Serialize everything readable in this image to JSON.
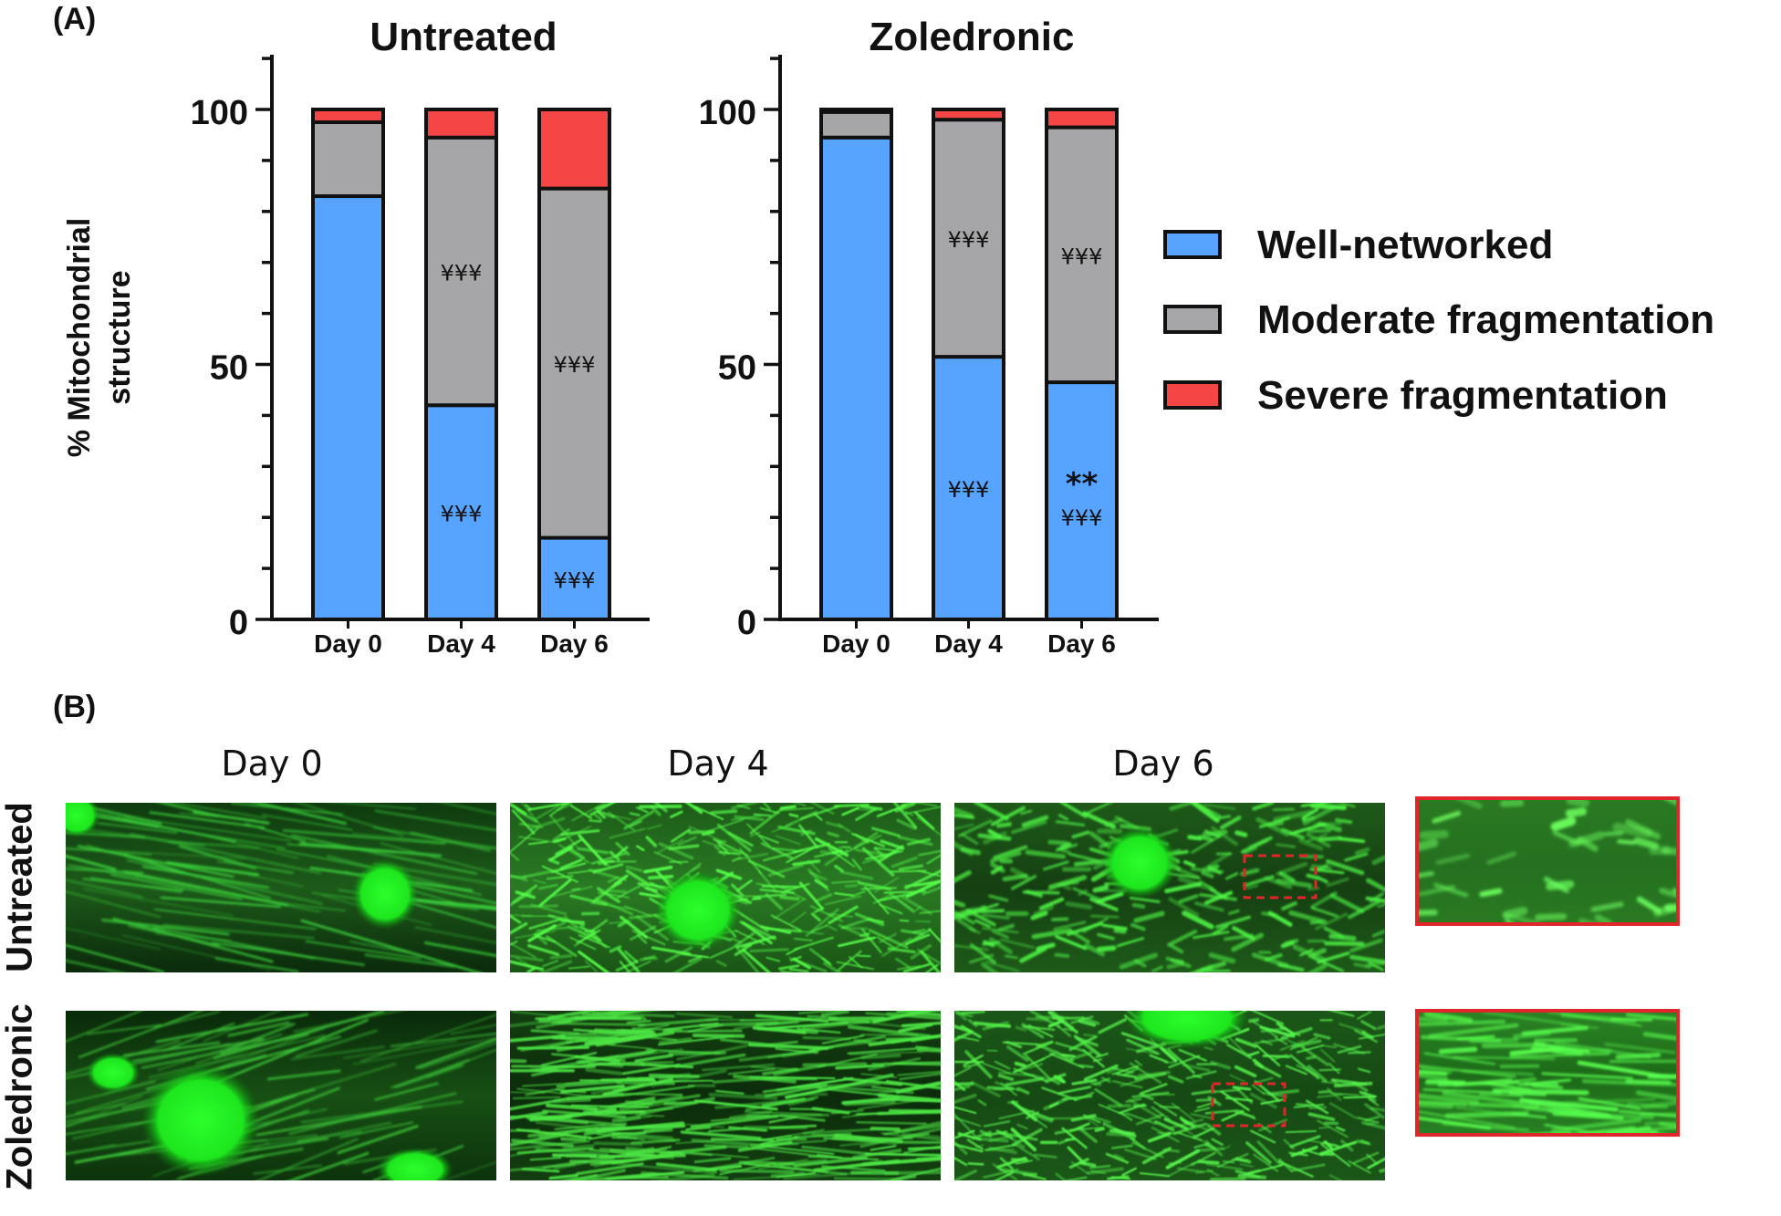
{
  "panels": {
    "a_label": "(A)",
    "b_label": "(B)"
  },
  "chart_data": [
    {
      "type": "bar",
      "stacked": true,
      "title": "Untreated",
      "ylabel": "% Mitochondrial structure",
      "xlabel": "",
      "ylim": [
        0,
        100
      ],
      "yticks": [
        "0",
        "50",
        "100"
      ],
      "categories": [
        "Day 0",
        "Day 4",
        "Day 6"
      ],
      "series": [
        {
          "name": "Well-networked",
          "color": "#56a4ff",
          "values": [
            83,
            42,
            16
          ]
        },
        {
          "name": "Moderate fragmentation",
          "color": "#a6a6a8",
          "values": [
            14.5,
            52.5,
            68.5
          ]
        },
        {
          "name": "Severe fragmentation",
          "color": "#f64545",
          "values": [
            2.5,
            5.5,
            15.5
          ]
        }
      ],
      "annotations": [
        {
          "category": "Day 4",
          "series": "Moderate fragmentation",
          "text": "¥¥¥"
        },
        {
          "category": "Day 4",
          "series": "Well-networked",
          "text": "¥¥¥"
        },
        {
          "category": "Day 6",
          "series": "Moderate fragmentation",
          "text": "¥¥¥"
        },
        {
          "category": "Day 6",
          "series": "Well-networked",
          "text": "¥¥¥"
        }
      ]
    },
    {
      "type": "bar",
      "stacked": true,
      "title": "Zoledronic",
      "ylabel": "",
      "xlabel": "",
      "ylim": [
        0,
        100
      ],
      "yticks": [
        "0",
        "50",
        "100"
      ],
      "categories": [
        "Day 0",
        "Day 4",
        "Day 6"
      ],
      "series": [
        {
          "name": "Well-networked",
          "color": "#56a4ff",
          "values": [
            94.5,
            51.5,
            46.5
          ]
        },
        {
          "name": "Moderate fragmentation",
          "color": "#a6a6a8",
          "values": [
            5,
            46.5,
            50
          ]
        },
        {
          "name": "Severe fragmentation",
          "color": "#f64545",
          "values": [
            0.5,
            2,
            3.5
          ]
        }
      ],
      "annotations": [
        {
          "category": "Day 4",
          "series": "Moderate fragmentation",
          "text": "¥¥¥"
        },
        {
          "category": "Day 4",
          "series": "Well-networked",
          "text": "¥¥¥"
        },
        {
          "category": "Day 6",
          "series": "Moderate fragmentation",
          "text": "¥¥¥"
        },
        {
          "category": "Day 6",
          "series": "Well-networked",
          "text": "**\n¥¥¥"
        }
      ]
    }
  ],
  "legend": {
    "placement": "right",
    "entries": [
      {
        "label": "Well-networked",
        "color": "#56a4ff"
      },
      {
        "label": "Moderate fragmentation",
        "color": "#a6a6a8"
      },
      {
        "label": "Severe fragmentation",
        "color": "#f64545"
      }
    ]
  },
  "micrographs": {
    "columns": [
      "Day 0",
      "Day 4",
      "Day 6"
    ],
    "rows": [
      "Untreated",
      "Zoledronic"
    ],
    "inset_border_color": "#e0262a"
  }
}
